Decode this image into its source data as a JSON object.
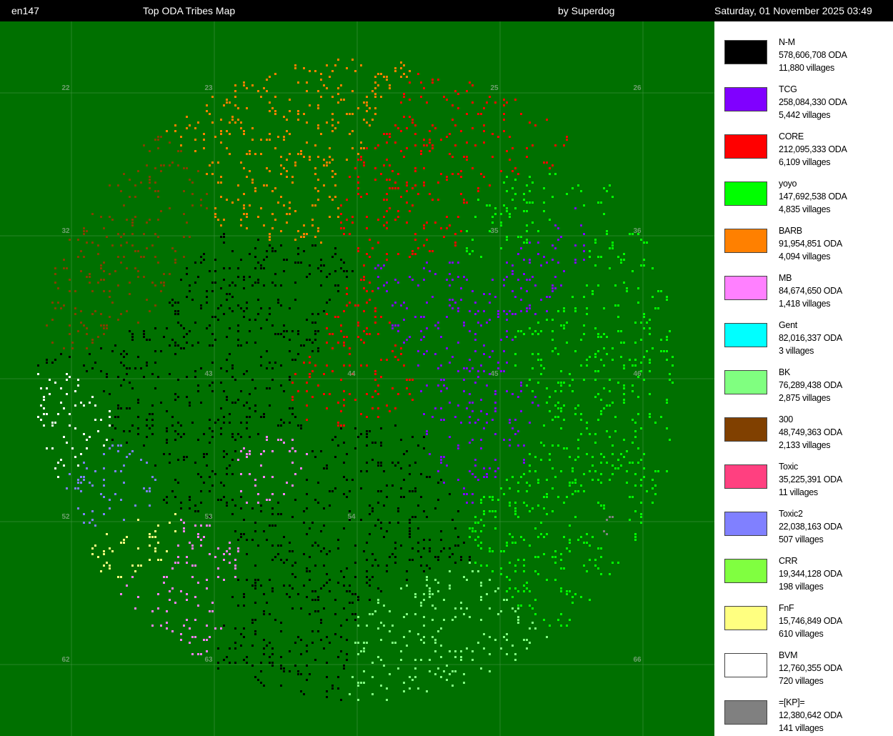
{
  "header": {
    "server": "en147",
    "title": "Top ODA Tribes Map",
    "author": "by Superdog",
    "datetime": "Saturday, 01 November 2025 03:49"
  },
  "map": {
    "background_color": "#007000",
    "continent_labels": [
      "22",
      "23",
      "25",
      "26",
      "32",
      "35",
      "36",
      "43",
      "44",
      "45",
      "46",
      "52",
      "53",
      "54",
      "62",
      "63",
      "66"
    ]
  },
  "legend": [
    {
      "name": "N-M",
      "oda": "578,606,708 ODA",
      "villages": "11,880 villages",
      "color": "#000000"
    },
    {
      "name": "TCG",
      "oda": "258,084,330 ODA",
      "villages": "5,442 villages",
      "color": "#8000ff"
    },
    {
      "name": "CORE",
      "oda": "212,095,333 ODA",
      "villages": "6,109 villages",
      "color": "#ff0000"
    },
    {
      "name": "yoyo",
      "oda": "147,692,538 ODA",
      "villages": "4,835 villages",
      "color": "#00ff00"
    },
    {
      "name": "BARB",
      "oda": "91,954,851 ODA",
      "villages": "4,094 villages",
      "color": "#ff8000"
    },
    {
      "name": "MB",
      "oda": "84,674,650 ODA",
      "villages": "1,418 villages",
      "color": "#ff80ff"
    },
    {
      "name": "Gent",
      "oda": "82,016,337 ODA",
      "villages": "3 villages",
      "color": "#00ffff"
    },
    {
      "name": "BK",
      "oda": "76,289,438 ODA",
      "villages": "2,875 villages",
      "color": "#80ff80"
    },
    {
      "name": "300",
      "oda": "48,749,363 ODA",
      "villages": "2,133 villages",
      "color": "#804000"
    },
    {
      "name": "Toxic",
      "oda": "35,225,391 ODA",
      "villages": "11 villages",
      "color": "#ff4080"
    },
    {
      "name": "Toxic2",
      "oda": "22,038,163 ODA",
      "villages": "507 villages",
      "color": "#8080ff"
    },
    {
      "name": "CRR",
      "oda": "19,344,128 ODA",
      "villages": "198 villages",
      "color": "#80ff40"
    },
    {
      "name": "FnF",
      "oda": "15,746,849 ODA",
      "villages": "610 villages",
      "color": "#ffff80"
    },
    {
      "name": "BVM",
      "oda": "12,760,355 ODA",
      "villages": "720 villages",
      "color": "#ffffff"
    },
    {
      "name": "=[KP]=",
      "oda": "12,380,642 ODA",
      "villages": "141 villages",
      "color": "#808080"
    }
  ]
}
